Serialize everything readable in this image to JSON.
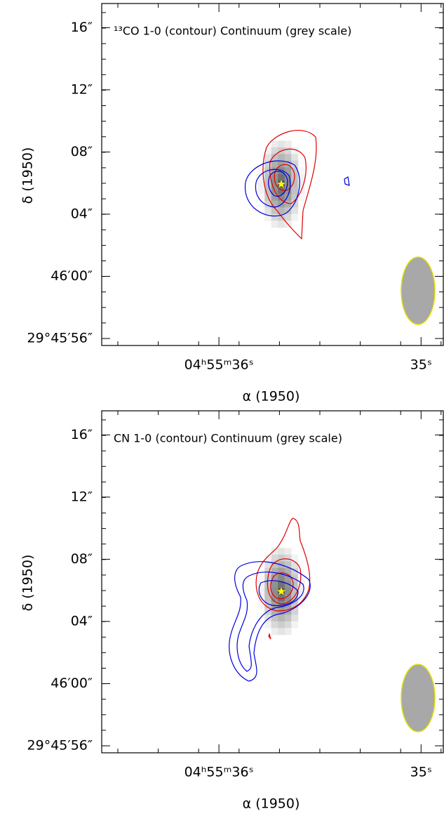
{
  "chart_data": [
    {
      "type": "contour",
      "title": "¹³CO 1-0 (contour) Continuum (grey scale)",
      "x_label": "α (1950)",
      "y_label": "δ (1950)",
      "xlim": [
        36.58,
        34.89
      ],
      "ylim": [
        -4.45,
        17.55
      ],
      "xticks": [
        {
          "value": 36,
          "label": "04ʰ55ᵐ36ˢ"
        },
        {
          "value": 35,
          "label": "35ˢ"
        }
      ],
      "yticks": [
        {
          "value": -4,
          "label": "29°45′56″"
        },
        {
          "value": 0,
          "label": "46′00″"
        },
        {
          "value": 4,
          "label": "04″"
        },
        {
          "value": 8,
          "label": "08″"
        },
        {
          "value": 12,
          "label": "12″"
        },
        {
          "value": 16,
          "label": "16″"
        }
      ]
    },
    {
      "type": "contour",
      "title": "CN 1-0 (contour) Continuum (grey scale)",
      "x_label": "α (1950)",
      "y_label": "δ (1950)",
      "xlim": [
        36.58,
        34.89
      ],
      "ylim": [
        -4.45,
        17.55
      ],
      "xticks": [
        {
          "value": 36,
          "label": "04ʰ55ᵐ36ˢ"
        },
        {
          "value": 35,
          "label": "35ˢ"
        }
      ],
      "yticks": [
        {
          "value": -4,
          "label": "29°45′56″"
        },
        {
          "value": 0,
          "label": "46′00″"
        },
        {
          "value": 4,
          "label": "04″"
        },
        {
          "value": 8,
          "label": "08″"
        },
        {
          "value": 12,
          "label": "12″"
        },
        {
          "value": 16,
          "label": "16″"
        }
      ]
    }
  ]
}
